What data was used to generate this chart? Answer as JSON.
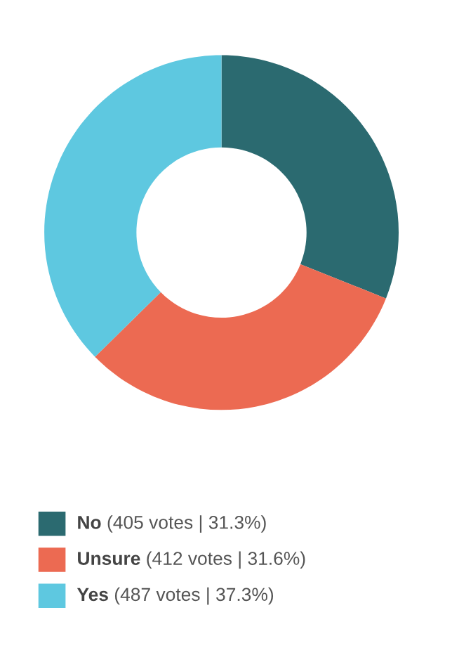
{
  "chart_data": {
    "type": "donut",
    "categories": [
      "No",
      "Unsure",
      "Yes"
    ],
    "values": [
      405,
      412,
      487
    ],
    "value_labels": [
      "(405 votes | 31.3%)",
      "(412 votes | 31.6%)",
      "(487 votes | 37.3%)"
    ],
    "colors": [
      "#2b6a70",
      "#ec6a52",
      "#5ec8e0"
    ],
    "legend": "bottom"
  }
}
